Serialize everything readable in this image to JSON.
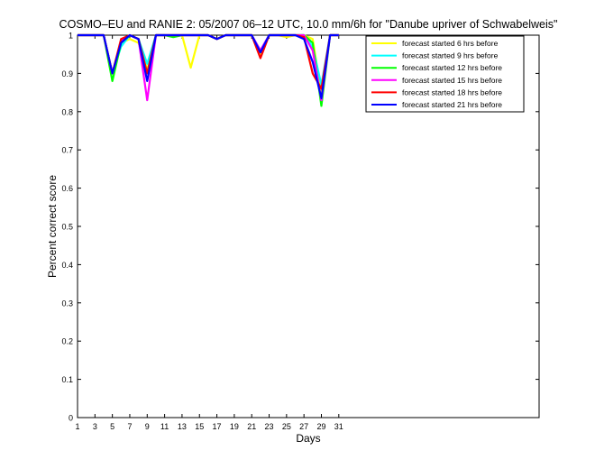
{
  "chart_data": {
    "type": "line",
    "title": "COSMO–EU and RANIE 2: 05/2007 06–12 UTC, 10.0 mm/6h for \"Danube upriver of Schwabelweis\"",
    "xlabel": "Days",
    "ylabel": "Percent correct score",
    "xlim": [
      1,
      54
    ],
    "ylim": [
      0,
      1
    ],
    "xticks": [
      1,
      3,
      5,
      7,
      9,
      11,
      13,
      15,
      17,
      19,
      21,
      23,
      25,
      27,
      29,
      31
    ],
    "yticks": [
      0,
      0.1,
      0.2,
      0.3,
      0.4,
      0.5,
      0.6,
      0.7,
      0.8,
      0.9,
      1
    ],
    "grid": false,
    "legend_position": "top-right",
    "x": [
      1,
      2,
      3,
      4,
      5,
      6,
      7,
      8,
      9,
      10,
      11,
      12,
      13,
      14,
      15,
      16,
      17,
      18,
      19,
      20,
      21,
      22,
      23,
      24,
      25,
      26,
      27,
      28,
      29,
      30,
      31
    ],
    "series": [
      {
        "name": "forecast started  6 hrs before",
        "color": "#ffff00",
        "values": [
          1,
          1,
          1,
          1,
          0.9,
          0.98,
          0.99,
          0.98,
          0.91,
          1,
          1,
          1,
          1,
          0.915,
          1,
          1,
          0.99,
          1,
          1,
          1,
          1,
          0.95,
          1,
          1,
          0.995,
          1,
          1,
          0.99,
          0.85,
          1,
          1
        ]
      },
      {
        "name": "forecast started  9 hrs before",
        "color": "#00ffff",
        "values": [
          1,
          1,
          1,
          1,
          0.9,
          0.97,
          1,
          0.99,
          0.925,
          1,
          1,
          1,
          1,
          1,
          1,
          1,
          0.99,
          1,
          1,
          1,
          1,
          0.96,
          1,
          1,
          1,
          1,
          1,
          0.97,
          0.87,
          1,
          1
        ]
      },
      {
        "name": "forecast started  12 hrs before",
        "color": "#00ff00",
        "values": [
          1,
          1,
          1,
          1,
          0.88,
          0.98,
          1,
          0.99,
          0.9,
          1,
          1,
          0.995,
          1,
          1,
          1,
          1,
          0.99,
          1,
          1,
          1,
          1,
          0.955,
          1,
          1,
          1,
          1,
          1,
          0.98,
          0.815,
          1,
          1
        ]
      },
      {
        "name": "forecast started  15 hrs before",
        "color": "#ff00ff",
        "values": [
          1,
          1,
          1,
          1,
          0.9,
          0.985,
          1,
          0.99,
          0.83,
          1,
          1,
          1,
          1,
          1,
          1,
          1,
          0.99,
          1,
          1,
          1,
          1,
          0.96,
          1,
          1,
          1,
          1,
          1,
          0.96,
          0.83,
          1,
          1
        ]
      },
      {
        "name": "forecast started  18 hrs before",
        "color": "#ff0000",
        "values": [
          1,
          1,
          1,
          1,
          0.9,
          0.99,
          1,
          0.99,
          0.9,
          1,
          1,
          1,
          1,
          1,
          1,
          1,
          0.99,
          1,
          1,
          1,
          1,
          0.94,
          1,
          1,
          1,
          1,
          0.995,
          0.9,
          0.86,
          1,
          1
        ]
      },
      {
        "name": "forecast started  21 hrs before",
        "color": "#0000ff",
        "values": [
          1,
          1,
          1,
          1,
          0.9,
          0.98,
          1,
          0.99,
          0.88,
          1,
          1,
          1,
          1,
          1,
          1,
          1,
          0.99,
          1,
          1,
          1,
          1,
          0.955,
          1,
          1,
          1,
          1,
          0.99,
          0.93,
          0.835,
          1,
          1
        ]
      }
    ]
  }
}
